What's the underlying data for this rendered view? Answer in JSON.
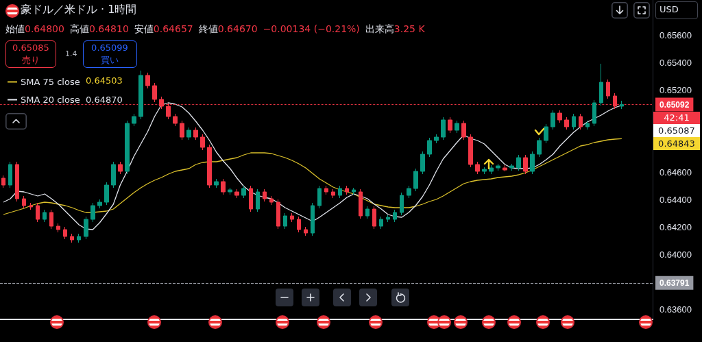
{
  "chart_data": {
    "type": "candlestick",
    "title": "豪ドル／米ドル · 1時間",
    "categories": [
      null,
      null,
      null,
      null,
      null,
      null,
      null,
      null,
      null,
      null,
      null,
      null,
      null,
      null,
      null,
      null,
      null,
      null,
      null,
      null,
      null,
      null,
      null,
      null,
      null,
      null,
      null,
      null,
      null,
      null,
      null,
      null,
      null,
      null,
      null,
      null,
      null,
      null,
      null,
      null,
      null,
      null,
      null,
      null,
      null,
      null,
      null,
      null,
      null,
      null,
      null,
      null,
      null,
      null,
      null,
      null,
      null,
      null,
      null,
      null,
      null,
      null,
      null,
      null,
      null,
      null,
      null,
      null,
      null,
      null,
      null,
      null,
      null,
      null,
      null,
      null,
      null,
      null,
      null,
      null,
      null,
      null,
      null,
      null,
      null,
      null,
      null,
      null,
      null,
      null,
      null,
      null,
      null,
      null,
      null
    ],
    "ohlc": [
      [
        0.64555,
        0.64575,
        0.64485,
        0.64505
      ],
      [
        0.64505,
        0.64675,
        0.64485,
        0.64655
      ],
      [
        0.64655,
        0.64675,
        0.64385,
        0.64405
      ],
      [
        0.64405,
        0.64425,
        0.64335,
        0.64355
      ],
      [
        0.64355,
        0.64375,
        0.64325,
        0.64345
      ],
      [
        0.64355,
        0.64375,
        0.64235,
        0.64255
      ],
      [
        0.64255,
        0.64325,
        0.64235,
        0.64305
      ],
      [
        0.64305,
        0.64325,
        0.64185,
        0.64205
      ],
      [
        0.64205,
        0.64225,
        0.6416,
        0.6418
      ],
      [
        0.6418,
        0.642,
        0.6411,
        0.6413
      ],
      [
        0.6413,
        0.6415,
        0.64085,
        0.64105
      ],
      [
        0.64105,
        0.6415,
        0.64085,
        0.6413
      ],
      [
        0.6413,
        0.64275,
        0.6411,
        0.64255
      ],
      [
        0.64255,
        0.64375,
        0.64235,
        0.64355
      ],
      [
        0.64355,
        0.644,
        0.64335,
        0.6438
      ],
      [
        0.6438,
        0.64525,
        0.6436,
        0.64505
      ],
      [
        0.64505,
        0.64675,
        0.64485,
        0.64655
      ],
      [
        0.64655,
        0.64675,
        0.64585,
        0.64605
      ],
      [
        0.64605,
        0.64975,
        0.64585,
        0.64955
      ],
      [
        0.64955,
        0.65025,
        0.64935,
        0.65005
      ],
      [
        0.65005,
        0.6534,
        0.64985,
        0.65305
      ],
      [
        0.65305,
        0.65325,
        0.6521,
        0.6523
      ],
      [
        0.6523,
        0.6525,
        0.6511,
        0.6513
      ],
      [
        0.6513,
        0.6515,
        0.6506,
        0.6508
      ],
      [
        0.6508,
        0.651,
        0.64985,
        0.65005
      ],
      [
        0.65005,
        0.65025,
        0.64935,
        0.64955
      ],
      [
        0.64955,
        0.64975,
        0.64835,
        0.64855
      ],
      [
        0.64855,
        0.64925,
        0.64835,
        0.64905
      ],
      [
        0.64905,
        0.64925,
        0.64835,
        0.64855
      ],
      [
        0.64855,
        0.64875,
        0.6476,
        0.6478
      ],
      [
        0.6478,
        0.648,
        0.64485,
        0.64505
      ],
      [
        0.64505,
        0.6455,
        0.64485,
        0.6453
      ],
      [
        0.6453,
        0.6455,
        0.64435,
        0.64455
      ],
      [
        0.64455,
        0.64485,
        0.64435,
        0.6447
      ],
      [
        0.64455,
        0.64475,
        0.6441,
        0.6443
      ],
      [
        0.6443,
        0.645,
        0.6441,
        0.6448
      ],
      [
        0.6448,
        0.645,
        0.6431,
        0.6433
      ],
      [
        0.6433,
        0.64475,
        0.6431,
        0.64455
      ],
      [
        0.64455,
        0.64475,
        0.64385,
        0.64405
      ],
      [
        0.64405,
        0.64425,
        0.6436,
        0.6438
      ],
      [
        0.6438,
        0.644,
        0.64185,
        0.64205
      ],
      [
        0.64205,
        0.643,
        0.64185,
        0.6428
      ],
      [
        0.6428,
        0.643,
        0.64235,
        0.64255
      ],
      [
        0.64255,
        0.64275,
        0.6416,
        0.6418
      ],
      [
        0.6418,
        0.642,
        0.64135,
        0.64155
      ],
      [
        0.64155,
        0.64375,
        0.64135,
        0.64355
      ],
      [
        0.64355,
        0.645,
        0.64335,
        0.6448
      ],
      [
        0.6448,
        0.645,
        0.64435,
        0.64455
      ],
      [
        0.64455,
        0.64475,
        0.6441,
        0.6443
      ],
      [
        0.6443,
        0.645,
        0.6441,
        0.6448
      ],
      [
        0.6448,
        0.645,
        0.64435,
        0.64455
      ],
      [
        0.64455,
        0.64485,
        0.64435,
        0.6447
      ],
      [
        0.64455,
        0.64475,
        0.6426,
        0.6428
      ],
      [
        0.6428,
        0.6435,
        0.6426,
        0.6433
      ],
      [
        0.6433,
        0.6435,
        0.64185,
        0.64205
      ],
      [
        0.64205,
        0.64275,
        0.64185,
        0.64255
      ],
      [
        0.64255,
        0.64285,
        0.64235,
        0.6427
      ],
      [
        0.64255,
        0.64325,
        0.64235,
        0.64305
      ],
      [
        0.64305,
        0.6445,
        0.64285,
        0.6443
      ],
      [
        0.6443,
        0.645,
        0.6441,
        0.6448
      ],
      [
        0.6448,
        0.64625,
        0.6446,
        0.64605
      ],
      [
        0.64605,
        0.6475,
        0.64585,
        0.6473
      ],
      [
        0.6473,
        0.6485,
        0.6471,
        0.6483
      ],
      [
        0.6483,
        0.64875,
        0.6481,
        0.64855
      ],
      [
        0.64855,
        0.65,
        0.64835,
        0.6498
      ],
      [
        0.6498,
        0.65,
        0.64885,
        0.64905
      ],
      [
        0.64905,
        0.64975,
        0.64885,
        0.64955
      ],
      [
        0.64955,
        0.64975,
        0.64835,
        0.64855
      ],
      [
        0.64855,
        0.64875,
        0.64635,
        0.64655
      ],
      [
        0.64655,
        0.64675,
        0.64585,
        0.64605
      ],
      [
        0.64605,
        0.64635,
        0.64585,
        0.6462
      ],
      [
        0.64605,
        0.6465,
        0.64585,
        0.6463
      ],
      [
        0.6463,
        0.6466,
        0.6461,
        0.64645
      ],
      [
        0.6463,
        0.6465,
        0.64605,
        0.64615
      ],
      [
        0.6463,
        0.6466,
        0.6461,
        0.64645
      ],
      [
        0.6463,
        0.64725,
        0.6461,
        0.64705
      ],
      [
        0.64705,
        0.64725,
        0.64585,
        0.64605
      ],
      [
        0.64605,
        0.6475,
        0.64585,
        0.6473
      ],
      [
        0.6473,
        0.6485,
        0.6471,
        0.6483
      ],
      [
        0.6483,
        0.6495,
        0.6481,
        0.6493
      ],
      [
        0.6493,
        0.6505,
        0.6491,
        0.6503
      ],
      [
        0.6503,
        0.6505,
        0.6496,
        0.6498
      ],
      [
        0.6498,
        0.65,
        0.6491,
        0.6493
      ],
      [
        0.6493,
        0.65025,
        0.6491,
        0.65005
      ],
      [
        0.65005,
        0.65025,
        0.6491,
        0.6493
      ],
      [
        0.6493,
        0.64975,
        0.6491,
        0.64955
      ],
      [
        0.64955,
        0.65125,
        0.64935,
        0.65105
      ],
      [
        0.65105,
        0.6539,
        0.65085,
        0.65255
      ],
      [
        0.65255,
        0.65275,
        0.65135,
        0.65155
      ],
      [
        0.65155,
        0.65175,
        0.6506,
        0.6508
      ],
      [
        0.6508,
        0.6512,
        0.6506,
        0.65092
      ],
      null,
      null,
      null,
      null
    ],
    "colors": [
      "#f23645",
      "#089981",
      "#f23645",
      "#f23645",
      "#f23645",
      "#f23645",
      "#089981",
      "#f23645",
      "#f23645",
      "#f23645",
      "#f23645",
      "#089981",
      "#089981",
      "#089981",
      "#089981",
      "#089981",
      "#089981",
      "#f23645",
      "#089981",
      "#089981",
      "#089981",
      "#f23645",
      "#f23645",
      "#f23645",
      "#f23645",
      "#f23645",
      "#f23645",
      "#089981",
      "#f23645",
      "#f23645",
      "#f23645",
      "#089981",
      "#f23645",
      "#089981",
      "#f23645",
      "#089981",
      "#f23645",
      "#089981",
      "#f23645",
      "#f23645",
      "#f23645",
      "#089981",
      "#f23645",
      "#f23645",
      "#f23645",
      "#089981",
      "#089981",
      "#f23645",
      "#f23645",
      "#089981",
      "#f23645",
      "#089981",
      "#f23645",
      "#089981",
      "#f23645",
      "#089981",
      "#089981",
      "#089981",
      "#089981",
      "#089981",
      "#089981",
      "#089981",
      "#089981",
      "#089981",
      "#089981",
      "#f23645",
      "#089981",
      "#f23645",
      "#f23645",
      "#f23645",
      "#089981",
      "#089981",
      "#089981",
      "#f23645",
      "#089981",
      "#089981",
      "#f23645",
      "#089981",
      "#089981",
      "#089981",
      "#089981",
      "#f23645",
      "#f23645",
      "#089981",
      "#f23645",
      "#089981",
      "#089981",
      "#089981",
      "#f23645",
      "#f23645",
      "#089981",
      null,
      null,
      null,
      null
    ],
    "series": [
      {
        "name": "SMA 75 close",
        "type": "line",
        "color": "#d9bf2b",
        "values": [
          0.6429,
          0.64305,
          0.6432,
          0.64335,
          0.64355,
          0.6437,
          0.6438,
          0.64375,
          0.64365,
          0.64355,
          0.6434,
          0.6432,
          0.64305,
          0.64305,
          0.6431,
          0.64315,
          0.6433,
          0.6437,
          0.6441,
          0.6445,
          0.64485,
          0.64515,
          0.6454,
          0.6456,
          0.64585,
          0.64605,
          0.64615,
          0.64625,
          0.64655,
          0.6467,
          0.64675,
          0.64675,
          0.64685,
          0.64695,
          0.64705,
          0.64725,
          0.6474,
          0.6474,
          0.6474,
          0.64735,
          0.6472,
          0.64705,
          0.64685,
          0.6466,
          0.6463,
          0.6459,
          0.6455,
          0.6452,
          0.6449,
          0.6447,
          0.64455,
          0.6444,
          0.64415,
          0.6439,
          0.64365,
          0.64355,
          0.64345,
          0.6434,
          0.6434,
          0.6434,
          0.6435,
          0.64365,
          0.64385,
          0.644,
          0.64425,
          0.64455,
          0.64485,
          0.64515,
          0.6453,
          0.6454,
          0.64545,
          0.6455,
          0.6456,
          0.64565,
          0.6457,
          0.6458,
          0.64595,
          0.64615,
          0.6464,
          0.64665,
          0.6469,
          0.64715,
          0.6474,
          0.64765,
          0.6479,
          0.648,
          0.64815,
          0.64825,
          0.64835,
          0.6484,
          0.64843,
          null,
          null,
          null,
          null
        ]
      },
      {
        "name": "SMA 20 close",
        "type": "line",
        "color": "#e0e3eb",
        "values": [
          0.6438,
          0.64405,
          0.6446,
          0.64455,
          0.6444,
          0.64425,
          0.6444,
          0.64405,
          0.64365,
          0.64315,
          0.64265,
          0.64215,
          0.64185,
          0.6418,
          0.6423,
          0.64295,
          0.64365,
          0.64505,
          0.64605,
          0.64715,
          0.64805,
          0.64895,
          0.65005,
          0.6509,
          0.65105,
          0.65095,
          0.65075,
          0.6503,
          0.6497,
          0.64905,
          0.6483,
          0.64745,
          0.6468,
          0.64625,
          0.64555,
          0.64495,
          0.64455,
          0.6443,
          0.64415,
          0.64405,
          0.64375,
          0.6434,
          0.64315,
          0.6429,
          0.64265,
          0.6424,
          0.6427,
          0.64305,
          0.6434,
          0.64375,
          0.64415,
          0.6444,
          0.64425,
          0.64405,
          0.64365,
          0.6433,
          0.6429,
          0.64275,
          0.6427,
          0.64305,
          0.64355,
          0.6442,
          0.64505,
          0.64605,
          0.64695,
          0.64755,
          0.64815,
          0.6487,
          0.64845,
          0.6483,
          0.64805,
          0.64755,
          0.64705,
          0.64655,
          0.6463,
          0.64625,
          0.64625,
          0.6463,
          0.64655,
          0.6469,
          0.6473,
          0.6479,
          0.6484,
          0.6489,
          0.6493,
          0.64965,
          0.6499,
          0.65015,
          0.65045,
          0.6507,
          0.65087,
          null,
          null,
          null,
          null
        ]
      }
    ],
    "marker": "none",
    "legend": "top left",
    "grid": false,
    "tick_labels": "y",
    "ylim": [
      0.63525,
      0.65855
    ],
    "yticks": [
      {
        "value": 0.636,
        "label": "0.63600"
      },
      {
        "value": 0.64,
        "label": "0.64000"
      },
      {
        "value": 0.642,
        "label": "0.64200"
      },
      {
        "value": 0.644,
        "label": "0.64400"
      },
      {
        "value": 0.646,
        "label": "0.64600"
      },
      {
        "value": 0.652,
        "label": "0.65200"
      },
      {
        "value": 0.654,
        "label": "0.65400"
      },
      {
        "value": 0.656,
        "label": "0.65600"
      }
    ],
    "ref_lines": [
      {
        "axis": "y",
        "value": 0.65092,
        "label": "0.65092",
        "color": "#f23645",
        "line_style": "dotted"
      },
      {
        "axis": "y",
        "value": 0.63791,
        "label": "0.63791",
        "color": "#9598a1",
        "line_style": "dashed"
      }
    ],
    "annotations": [
      "始値",
      "0.64800",
      "高値",
      "0.64810",
      "安値",
      "0.64657",
      "終値",
      "0.64670",
      "−0.00134 (−0.21%)",
      "出来高",
      "3.25 K",
      "0.65085",
      "売り",
      "1.4",
      "0.65099",
      "買い",
      "0.64503",
      "0.64870",
      "42:41",
      "0.65087",
      "0.64843",
      "USD"
    ]
  }
}
